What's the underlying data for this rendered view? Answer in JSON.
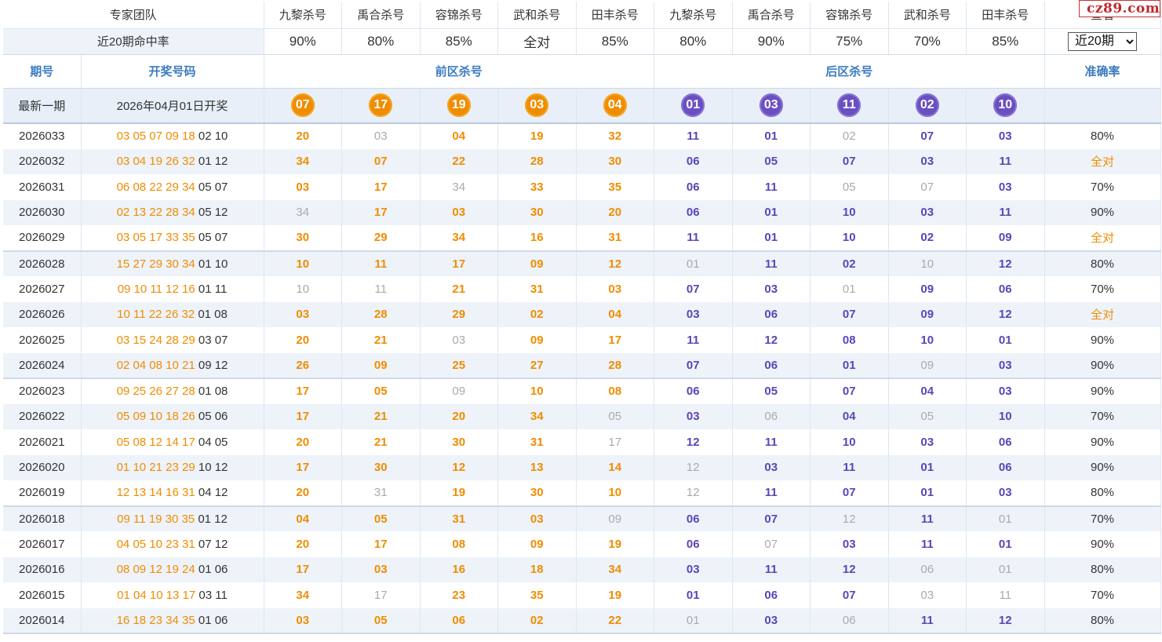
{
  "header": {
    "team_label": "专家团队",
    "rate_label": "近20期命中率",
    "experts": [
      "九黎杀号",
      "禹合杀号",
      "容锦杀号",
      "武和杀号",
      "田丰杀号",
      "九黎杀号",
      "禹合杀号",
      "容锦杀号",
      "武和杀号",
      "田丰杀号"
    ],
    "rates": [
      "90%",
      "80%",
      "85%",
      "全对",
      "85%",
      "80%",
      "90%",
      "75%",
      "70%",
      "85%"
    ],
    "rates_full": [
      false,
      false,
      false,
      true,
      false,
      false,
      false,
      false,
      false,
      false
    ],
    "select_label": "查看",
    "select_value": "近20期"
  },
  "columns": {
    "period": "期号",
    "draw": "开奖号码",
    "front": "前区杀号",
    "back": "后区杀号",
    "accuracy": "准确率"
  },
  "latest": {
    "label": "最新一期",
    "draw_date": "2026年04月01日开奖",
    "front": [
      "07",
      "17",
      "19",
      "03",
      "04"
    ],
    "back": [
      "01",
      "03",
      "11",
      "02",
      "10"
    ]
  },
  "rows": [
    {
      "period": "2026033",
      "front_draw": "03 05 07 09 18",
      "back_draw": "02 10",
      "front": [
        "20",
        "03",
        "04",
        "19",
        "32"
      ],
      "back": [
        "11",
        "01",
        "02",
        "07",
        "03"
      ],
      "fail": [
        1,
        7
      ],
      "acc": "80%"
    },
    {
      "period": "2026032",
      "front_draw": "03 04 19 26 32",
      "back_draw": "01 12",
      "front": [
        "34",
        "07",
        "22",
        "28",
        "30"
      ],
      "back": [
        "06",
        "05",
        "07",
        "03",
        "11"
      ],
      "fail": [],
      "acc": "全对"
    },
    {
      "period": "2026031",
      "front_draw": "06 08 22 29 34",
      "back_draw": "05 07",
      "front": [
        "03",
        "17",
        "34",
        "33",
        "35"
      ],
      "back": [
        "06",
        "11",
        "05",
        "07",
        "03"
      ],
      "fail": [
        2,
        7,
        8
      ],
      "acc": "70%"
    },
    {
      "period": "2026030",
      "front_draw": "02 13 22 28 34",
      "back_draw": "05 12",
      "front": [
        "34",
        "17",
        "03",
        "30",
        "20"
      ],
      "back": [
        "06",
        "01",
        "10",
        "03",
        "11"
      ],
      "fail": [
        0
      ],
      "acc": "90%"
    },
    {
      "period": "2026029",
      "front_draw": "03 05 17 33 35",
      "back_draw": "05 07",
      "front": [
        "30",
        "29",
        "34",
        "16",
        "31"
      ],
      "back": [
        "11",
        "01",
        "10",
        "02",
        "09"
      ],
      "fail": [],
      "acc": "全对"
    },
    {
      "period": "2026028",
      "front_draw": "15 27 29 30 34",
      "back_draw": "01 10",
      "front": [
        "10",
        "11",
        "17",
        "09",
        "12"
      ],
      "back": [
        "01",
        "11",
        "02",
        "10",
        "12"
      ],
      "fail": [
        5,
        8
      ],
      "acc": "80%"
    },
    {
      "period": "2026027",
      "front_draw": "09 10 11 12 16",
      "back_draw": "01 11",
      "front": [
        "10",
        "11",
        "21",
        "31",
        "03"
      ],
      "back": [
        "07",
        "03",
        "01",
        "09",
        "06"
      ],
      "fail": [
        0,
        1,
        7
      ],
      "acc": "70%"
    },
    {
      "period": "2026026",
      "front_draw": "10 11 22 26 32",
      "back_draw": "01 08",
      "front": [
        "03",
        "28",
        "29",
        "02",
        "04"
      ],
      "back": [
        "03",
        "06",
        "07",
        "09",
        "12"
      ],
      "fail": [],
      "acc": "全对"
    },
    {
      "period": "2026025",
      "front_draw": "03 15 24 28 29",
      "back_draw": "03 07",
      "front": [
        "20",
        "21",
        "03",
        "09",
        "17"
      ],
      "back": [
        "11",
        "12",
        "08",
        "10",
        "01"
      ],
      "fail": [
        2
      ],
      "acc": "90%"
    },
    {
      "period": "2026024",
      "front_draw": "02 04 08 10 21",
      "back_draw": "09 12",
      "front": [
        "26",
        "09",
        "25",
        "27",
        "28"
      ],
      "back": [
        "07",
        "06",
        "01",
        "09",
        "03"
      ],
      "fail": [
        8
      ],
      "acc": "90%"
    },
    {
      "period": "2026023",
      "front_draw": "09 25 26 27 28",
      "back_draw": "01 08",
      "front": [
        "17",
        "05",
        "09",
        "10",
        "08"
      ],
      "back": [
        "06",
        "05",
        "07",
        "04",
        "03"
      ],
      "fail": [
        2
      ],
      "acc": "90%"
    },
    {
      "period": "2026022",
      "front_draw": "05 09 10 18 26",
      "back_draw": "05 06",
      "front": [
        "17",
        "21",
        "20",
        "34",
        "05"
      ],
      "back": [
        "03",
        "06",
        "04",
        "05",
        "10"
      ],
      "fail": [
        4,
        6,
        8
      ],
      "acc": "70%"
    },
    {
      "period": "2026021",
      "front_draw": "05 08 12 14 17",
      "back_draw": "04 05",
      "front": [
        "20",
        "21",
        "30",
        "31",
        "17"
      ],
      "back": [
        "12",
        "11",
        "10",
        "03",
        "06"
      ],
      "fail": [
        4
      ],
      "acc": "90%"
    },
    {
      "period": "2026020",
      "front_draw": "01 10 21 23 29",
      "back_draw": "10 12",
      "front": [
        "17",
        "30",
        "12",
        "13",
        "14"
      ],
      "back": [
        "12",
        "03",
        "11",
        "01",
        "06"
      ],
      "fail": [
        5
      ],
      "acc": "90%"
    },
    {
      "period": "2026019",
      "front_draw": "12 13 14 16 31",
      "back_draw": "04 12",
      "front": [
        "20",
        "31",
        "19",
        "30",
        "10"
      ],
      "back": [
        "12",
        "11",
        "07",
        "01",
        "03"
      ],
      "fail": [
        1,
        5
      ],
      "acc": "80%"
    },
    {
      "period": "2026018",
      "front_draw": "09 11 19 30 35",
      "back_draw": "01 12",
      "front": [
        "04",
        "05",
        "31",
        "03",
        "09"
      ],
      "back": [
        "06",
        "07",
        "12",
        "11",
        "01"
      ],
      "fail": [
        4,
        7,
        9
      ],
      "acc": "70%"
    },
    {
      "period": "2026017",
      "front_draw": "04 05 10 23 31",
      "back_draw": "07 12",
      "front": [
        "20",
        "17",
        "08",
        "09",
        "19"
      ],
      "back": [
        "06",
        "07",
        "03",
        "11",
        "01"
      ],
      "fail": [
        6
      ],
      "acc": "90%"
    },
    {
      "period": "2026016",
      "front_draw": "08 09 12 19 24",
      "back_draw": "01 06",
      "front": [
        "17",
        "03",
        "16",
        "18",
        "34"
      ],
      "back": [
        "03",
        "11",
        "12",
        "06",
        "01"
      ],
      "fail": [
        8,
        9
      ],
      "acc": "80%"
    },
    {
      "period": "2026015",
      "front_draw": "01 04 10 13 17",
      "back_draw": "03 11",
      "front": [
        "34",
        "17",
        "23",
        "35",
        "19"
      ],
      "back": [
        "01",
        "06",
        "07",
        "03",
        "11"
      ],
      "fail": [
        1,
        8,
        9
      ],
      "acc": "70%"
    },
    {
      "period": "2026014",
      "front_draw": "16 18 23 34 35",
      "back_draw": "01 06",
      "front": [
        "03",
        "05",
        "06",
        "02",
        "22"
      ],
      "back": [
        "01",
        "03",
        "06",
        "11",
        "12"
      ],
      "fail": [
        5,
        7
      ],
      "acc": "80%"
    }
  ],
  "logo": {
    "text": "cz89.com"
  },
  "colors": {
    "accent_orange": "#f08c00",
    "accent_purple": "#5a45b8",
    "header_blue": "#3a7bc0",
    "row_alt": "#eef3fa"
  }
}
